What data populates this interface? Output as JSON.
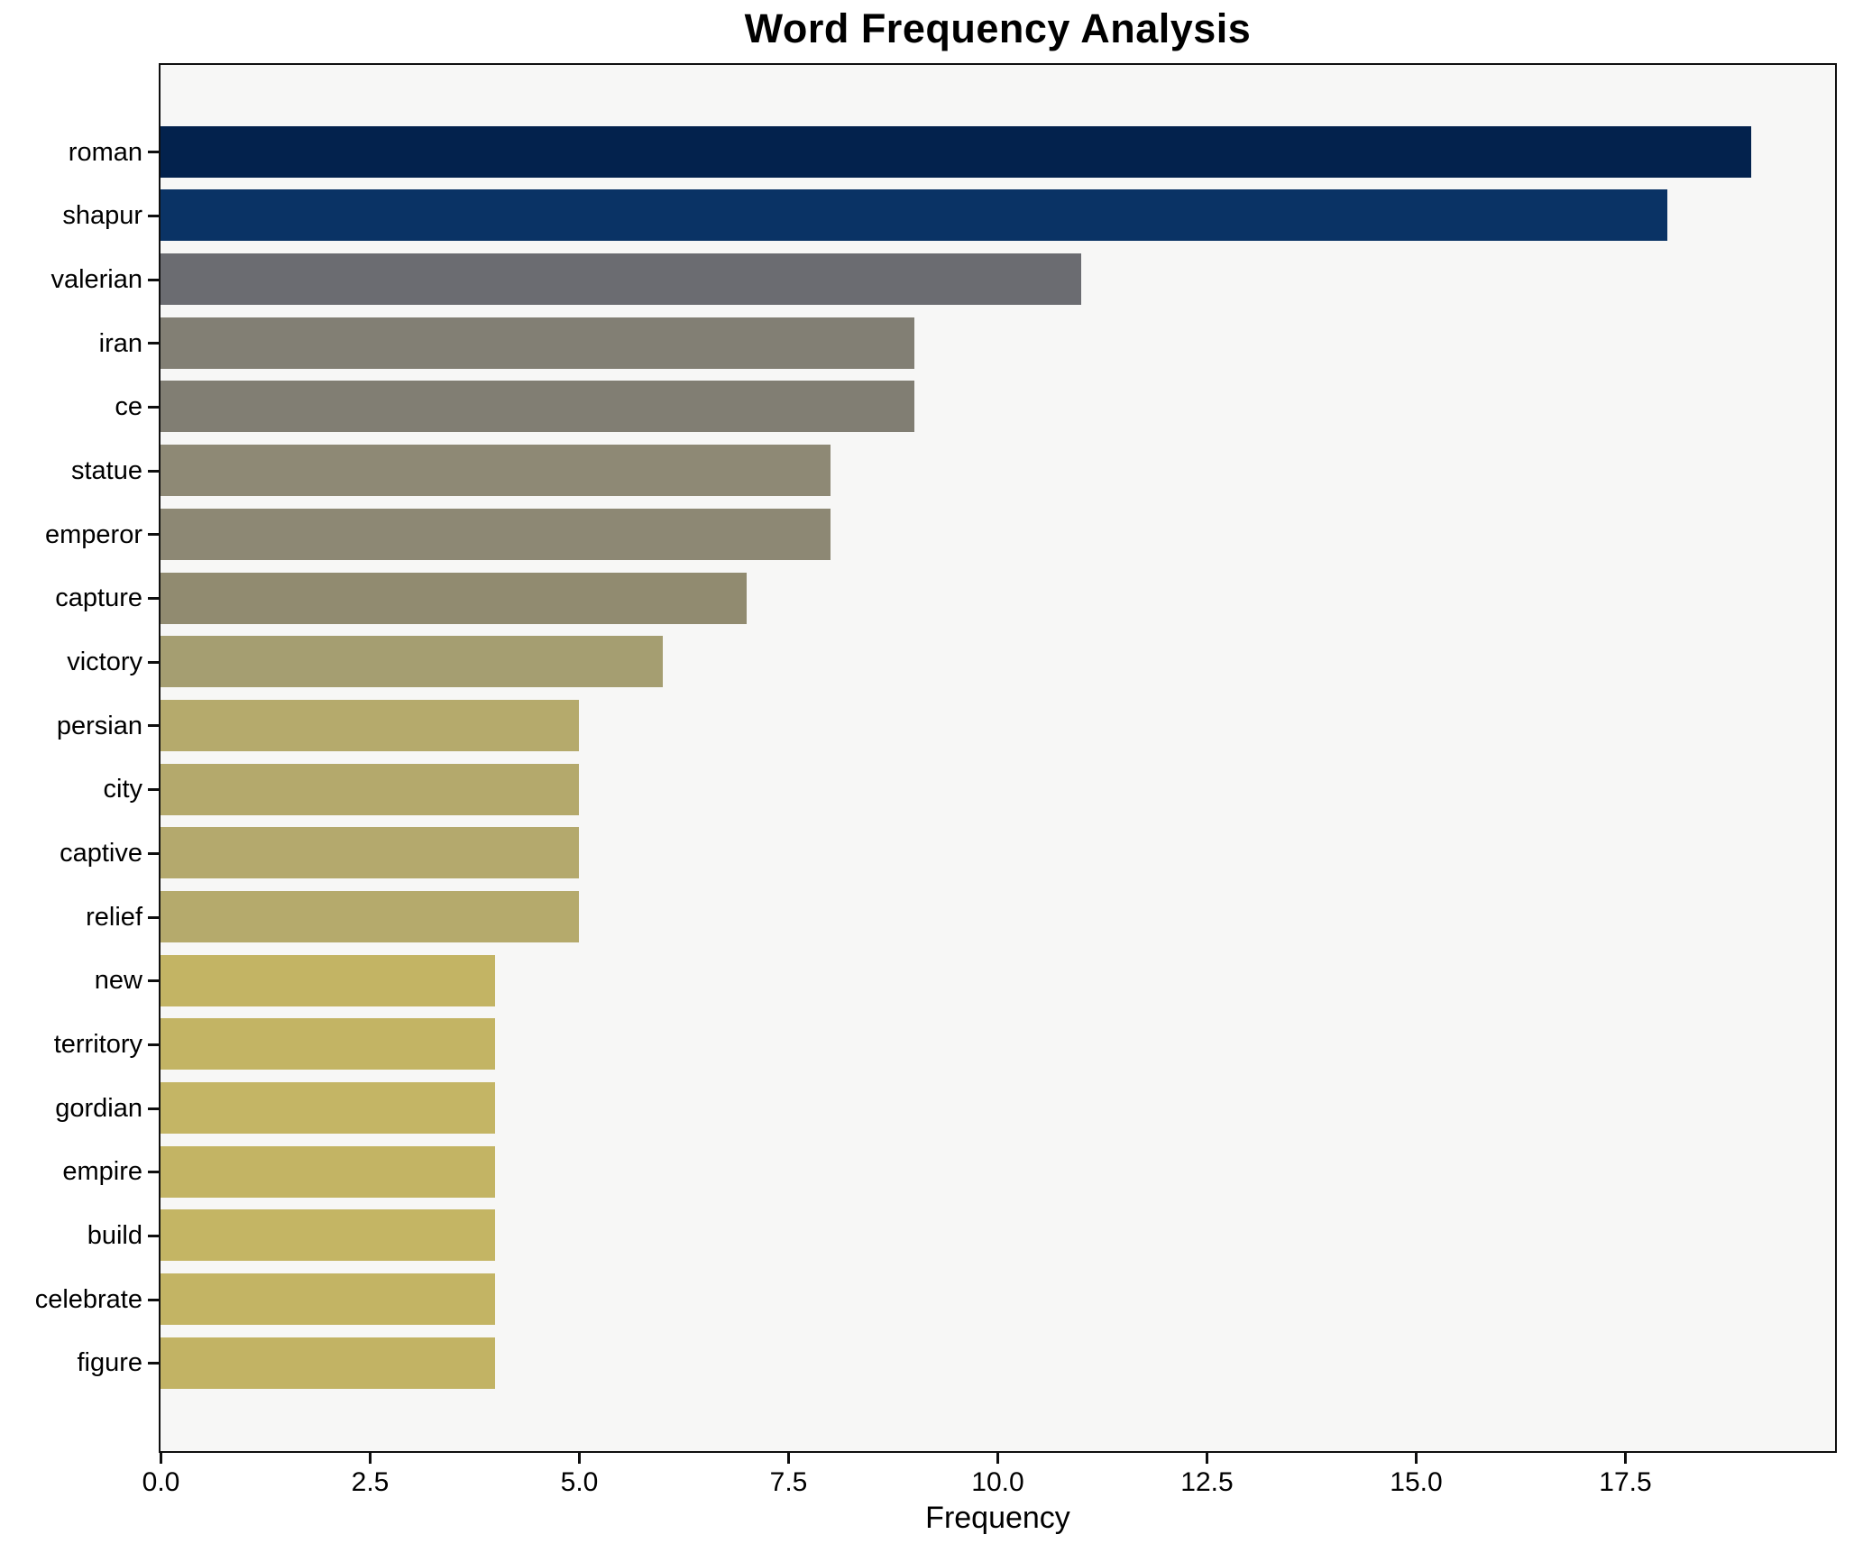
{
  "chart_data": {
    "type": "bar",
    "orientation": "horizontal",
    "title": "Word Frequency Analysis",
    "xlabel": "Frequency",
    "ylabel": "",
    "categories": [
      "roman",
      "shapur",
      "valerian",
      "iran",
      "ce",
      "statue",
      "emperor",
      "capture",
      "victory",
      "persian",
      "city",
      "captive",
      "relief",
      "new",
      "territory",
      "gordian",
      "empire",
      "build",
      "celebrate",
      "figure"
    ],
    "values": [
      19,
      18,
      11,
      9,
      9,
      8,
      8,
      7,
      6,
      5,
      5,
      5,
      5,
      4,
      4,
      4,
      4,
      4,
      4,
      4
    ],
    "bar_colors": [
      "#03224d",
      "#0a3365",
      "#6b6c71",
      "#827f74",
      "#817e73",
      "#8e8975",
      "#8d8874",
      "#918b70",
      "#a59e71",
      "#b5aa6c",
      "#b4a96c",
      "#b4a96d",
      "#b5aa6c",
      "#c3b464",
      "#c3b464",
      "#c4b565",
      "#c3b464",
      "#c4b564",
      "#c3b464",
      "#c2b364"
    ],
    "xlim": [
      0,
      20
    ],
    "xticks": [
      0,
      2.5,
      5,
      7.5,
      10,
      12.5,
      15,
      17.5
    ],
    "xtick_labels": [
      "0.0",
      "2.5",
      "5.0",
      "7.5",
      "10.0",
      "12.5",
      "15.0",
      "17.5"
    ],
    "grid": false,
    "legend": null,
    "plot_background": "#f7f7f6",
    "figure_background": "#ffffff",
    "spine_color": "#0f0f0f",
    "text_color": "#000000"
  }
}
